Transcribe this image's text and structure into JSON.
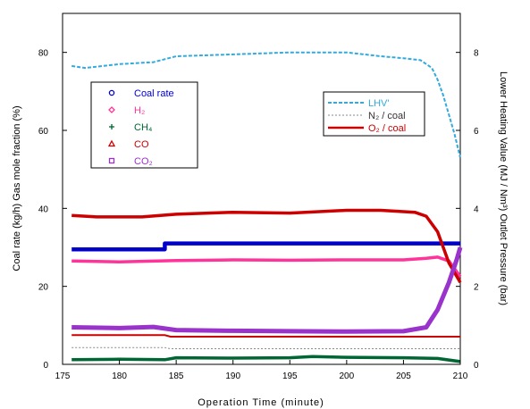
{
  "chart_data": {
    "type": "line",
    "title": "",
    "xlabel": "Operation Time (minute)",
    "ylabel": "Coal rate (kg/h)  Gas mole fraction (%)",
    "y2label": "Lower Heating Value (MJ / Nm³) Outlet Pressure (bar)",
    "xlim": [
      175,
      210
    ],
    "ylim": [
      0,
      90
    ],
    "y2lim": [
      0,
      9
    ],
    "x_ticks": [
      "175",
      "180",
      "185",
      "190",
      "195",
      "200",
      "205",
      "210"
    ],
    "y_ticks": [
      "0",
      "20",
      "40",
      "60",
      "80"
    ],
    "y2_ticks": [
      "0",
      "2",
      "4",
      "6",
      "8"
    ],
    "grid": false,
    "legends": [
      {
        "placement": "upper-left",
        "entries": [
          {
            "label": "Coal rate",
            "color": "#0000cc",
            "marker": "circle"
          },
          {
            "label": "H₂",
            "color": "#ff3399",
            "marker": "diamond"
          },
          {
            "label": "CH₄",
            "color": "#006633",
            "marker": "plus"
          },
          {
            "label": "CO",
            "color": "#cc0000",
            "marker": "triangle"
          },
          {
            "label": "CO₂",
            "color": "#9933cc",
            "marker": "square"
          }
        ]
      },
      {
        "placement": "upper-right",
        "entries": [
          {
            "label": "LHV'",
            "color": "#33aadd",
            "style": "dashed"
          },
          {
            "label": "N₂ / coal",
            "color": "#888888",
            "style": "dotted"
          },
          {
            "label": "O₂ / coal",
            "color": "#cc0000",
            "style": "solid"
          }
        ]
      }
    ],
    "series": [
      {
        "name": "Coal rate",
        "axis": "left",
        "color": "#0000cc",
        "style": "marker",
        "x": [
          175.8,
          184,
          184,
          210
        ],
        "y": [
          29.5,
          29.5,
          31,
          31
        ]
      },
      {
        "name": "H₂",
        "axis": "left",
        "color": "#ff3399",
        "style": "marker",
        "x": [
          175.8,
          180,
          185,
          190,
          195,
          200,
          205,
          207,
          208,
          209,
          210
        ],
        "y": [
          26.5,
          26.3,
          26.6,
          26.8,
          26.7,
          26.8,
          26.8,
          27.2,
          27.5,
          26.5,
          22.5
        ]
      },
      {
        "name": "CH₄",
        "axis": "left",
        "color": "#006633",
        "style": "marker",
        "x": [
          175.8,
          180,
          184,
          185,
          190,
          195,
          197,
          200,
          205,
          208,
          210
        ],
        "y": [
          1.2,
          1.3,
          1.2,
          1.7,
          1.6,
          1.7,
          2.0,
          1.8,
          1.7,
          1.5,
          0.7
        ]
      },
      {
        "name": "CO",
        "axis": "left",
        "color": "#cc0000",
        "style": "marker",
        "x": [
          175.8,
          178,
          182,
          185,
          190,
          195,
          200,
          203,
          206,
          207,
          208,
          209,
          210
        ],
        "y": [
          38.2,
          37.8,
          37.8,
          38.5,
          39,
          38.8,
          39.5,
          39.5,
          39,
          38,
          34,
          26,
          21
        ]
      },
      {
        "name": "CO₂",
        "axis": "left",
        "color": "#9933cc",
        "style": "marker",
        "x": [
          175.8,
          180,
          183,
          185,
          190,
          195,
          200,
          205,
          207,
          208,
          209,
          209.7,
          210
        ],
        "y": [
          9.5,
          9.3,
          9.6,
          8.8,
          8.6,
          8.5,
          8.4,
          8.5,
          9.5,
          14,
          21,
          27,
          30
        ]
      },
      {
        "name": "LHV'",
        "axis": "right",
        "color": "#33aadd",
        "style": "dashed",
        "x": [
          175.8,
          177,
          180,
          183,
          185,
          190,
          195,
          200,
          203,
          205,
          206.5,
          207.5,
          208,
          208.5,
          209,
          209.5,
          210
        ],
        "y": [
          7.65,
          7.6,
          7.7,
          7.75,
          7.9,
          7.95,
          8.0,
          8.0,
          7.9,
          7.85,
          7.8,
          7.6,
          7.3,
          6.9,
          6.4,
          5.9,
          5.3
        ]
      },
      {
        "name": "N₂ / coal",
        "axis": "left",
        "color": "#888888",
        "style": "dotted",
        "x": [
          175.8,
          184,
          184.5,
          210
        ],
        "y": [
          4.3,
          4.3,
          4.0,
          4.0
        ]
      },
      {
        "name": "O₂ / coal",
        "axis": "left",
        "color": "#cc0000",
        "style": "solid",
        "x": [
          175.8,
          184,
          184.5,
          210
        ],
        "y": [
          7.5,
          7.5,
          7.1,
          7.1
        ]
      }
    ]
  }
}
